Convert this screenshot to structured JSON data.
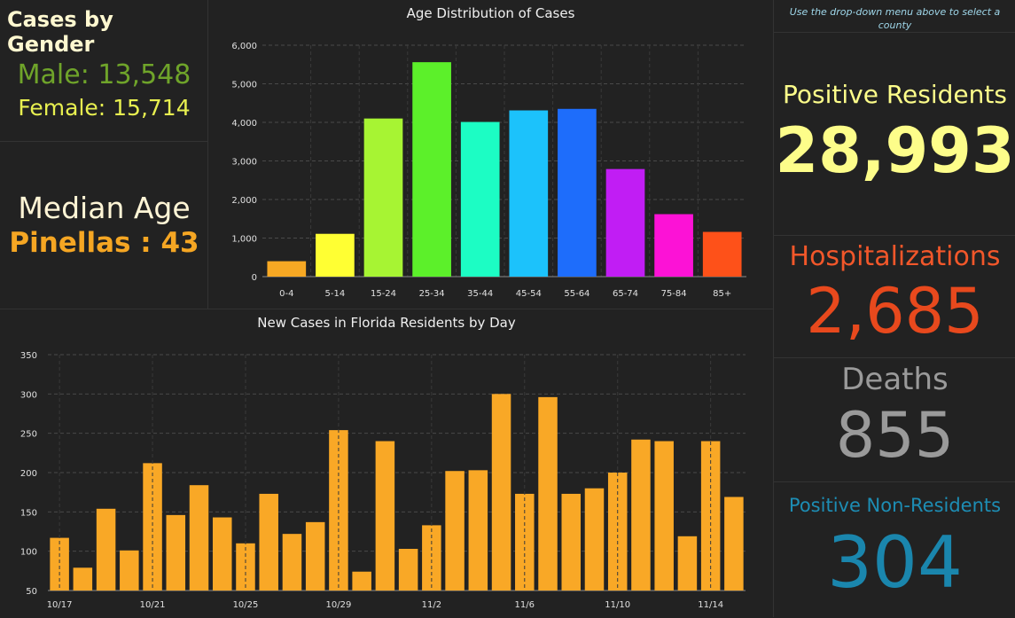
{
  "gender": {
    "title": "Cases by Gender",
    "male": "Male: 13,548",
    "female": "Female: 15,714"
  },
  "median": {
    "label": "Median Age",
    "value": "Pinellas : 43"
  },
  "right_panel": {
    "hint": "Use the drop-down menu above to select a county",
    "positive_label": "Positive Residents",
    "positive_value": "28,993",
    "hosp_label": "Hospitalizations",
    "hosp_value": "2,685",
    "deaths_label": "Deaths",
    "deaths_value": "855",
    "nonres_label": "Positive Non-Residents",
    "nonres_value": "304"
  },
  "chart_data": [
    {
      "type": "bar",
      "title": "Age Distribution of Cases",
      "categories": [
        "0-4",
        "5-14",
        "15-24",
        "25-34",
        "35-44",
        "45-54",
        "55-64",
        "65-74",
        "75-84",
        "85+"
      ],
      "values": [
        400,
        1110,
        4100,
        5560,
        4010,
        4310,
        4350,
        2790,
        1620,
        1160
      ],
      "colors": [
        "#f7a823",
        "#ffff33",
        "#a7f433",
        "#5cf02a",
        "#1cfdc4",
        "#1cc2fb",
        "#1e6dfb",
        "#c11df4",
        "#fc12d6",
        "#fe5119"
      ],
      "ylim": [
        0,
        6000
      ],
      "yticks": [
        0,
        1000,
        2000,
        3000,
        4000,
        5000,
        6000
      ],
      "ytick_labels": [
        "0",
        "1,000",
        "2,000",
        "3,000",
        "4,000",
        "5,000",
        "6,000"
      ],
      "grid": true
    },
    {
      "type": "bar",
      "title": "New Cases in Florida Residents by Day",
      "categories": [
        "10/17",
        "10/18",
        "10/19",
        "10/20",
        "10/21",
        "10/22",
        "10/23",
        "10/24",
        "10/25",
        "10/26",
        "10/27",
        "10/28",
        "10/29",
        "10/30",
        "10/31",
        "11/1",
        "11/2",
        "11/3",
        "11/4",
        "11/5",
        "11/6",
        "11/7",
        "11/8",
        "11/9",
        "11/10",
        "11/11",
        "11/12",
        "11/13",
        "11/14",
        "11/15"
      ],
      "values": [
        117,
        79,
        154,
        101,
        212,
        146,
        184,
        143,
        110,
        173,
        122,
        137,
        254,
        74,
        240,
        103,
        133,
        202,
        203,
        300,
        173,
        296,
        173,
        180,
        200,
        242,
        240,
        119,
        240,
        169
      ],
      "color": "#f9a826",
      "ylim": [
        50,
        350
      ],
      "yticks": [
        50,
        100,
        150,
        200,
        250,
        300,
        350
      ],
      "xtick_labels": [
        "10/17",
        "10/21",
        "10/25",
        "10/29",
        "11/2",
        "11/6",
        "11/10",
        "11/14"
      ],
      "grid": true
    }
  ]
}
